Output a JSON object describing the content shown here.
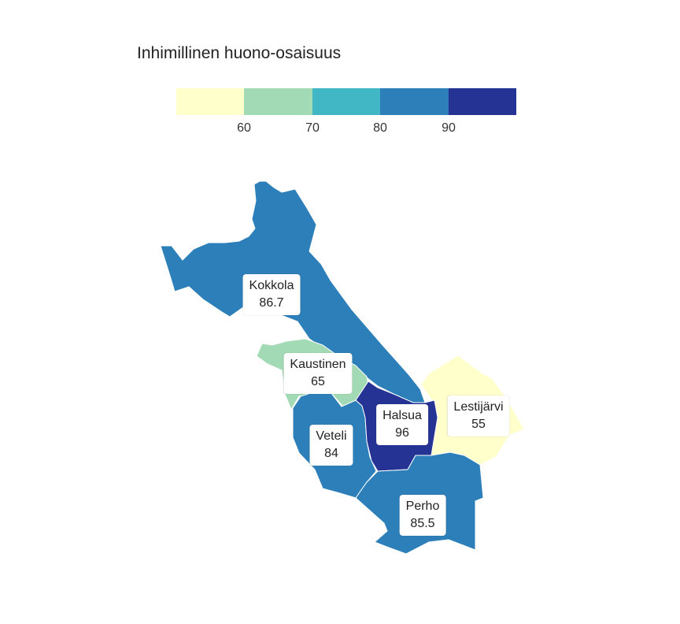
{
  "legend": {
    "title": "Inhimillinen huono-osaisuus",
    "colors": [
      "#ffffcc",
      "#a1dab4",
      "#41b6c4",
      "#2c7fb8",
      "#253494"
    ],
    "ticks": [
      "60",
      "70",
      "80",
      "90"
    ]
  },
  "regions": [
    {
      "name": "Kokkola",
      "value": "86.7",
      "color": "#2c7fb8"
    },
    {
      "name": "Kaustinen",
      "value": "65",
      "color": "#a1dab4"
    },
    {
      "name": "Veteli",
      "value": "84",
      "color": "#2c7fb8"
    },
    {
      "name": "Halsua",
      "value": "96",
      "color": "#253494"
    },
    {
      "name": "Lestijärvi",
      "value": "55",
      "color": "#ffffcc"
    },
    {
      "name": "Perho",
      "value": "85.5",
      "color": "#2c7fb8"
    }
  ]
}
